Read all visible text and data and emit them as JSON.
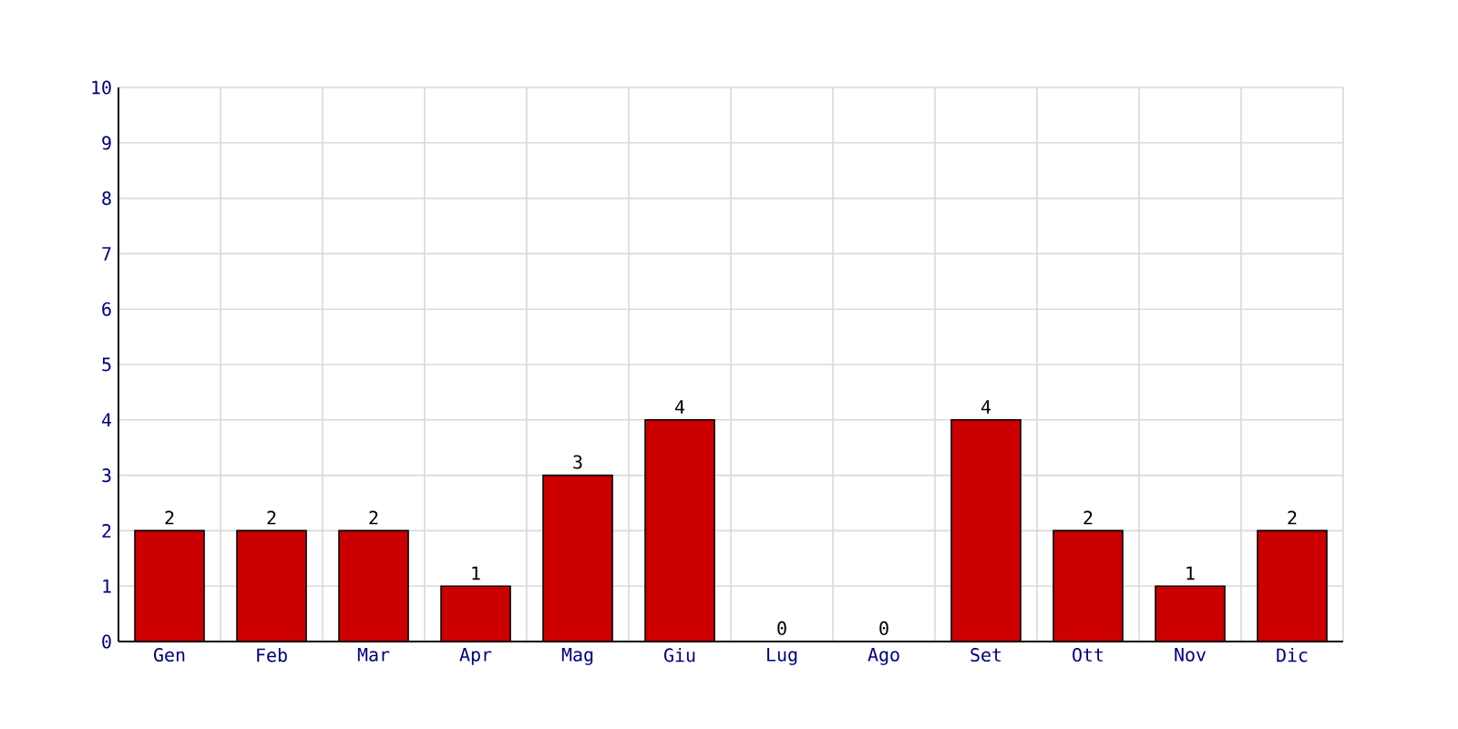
{
  "chart_data": {
    "type": "bar",
    "categories": [
      "Gen",
      "Feb",
      "Mar",
      "Apr",
      "Mag",
      "Giu",
      "Lug",
      "Ago",
      "Set",
      "Ott",
      "Nov",
      "Dic"
    ],
    "values": [
      2,
      2,
      2,
      1,
      3,
      4,
      0,
      0,
      4,
      2,
      1,
      2
    ],
    "color": "#cc0000",
    "ylim": [
      0,
      10
    ],
    "yticks": [
      0,
      1,
      2,
      3,
      4,
      5,
      6,
      7,
      8,
      9,
      10
    ],
    "grid": true,
    "data_labels": true
  }
}
